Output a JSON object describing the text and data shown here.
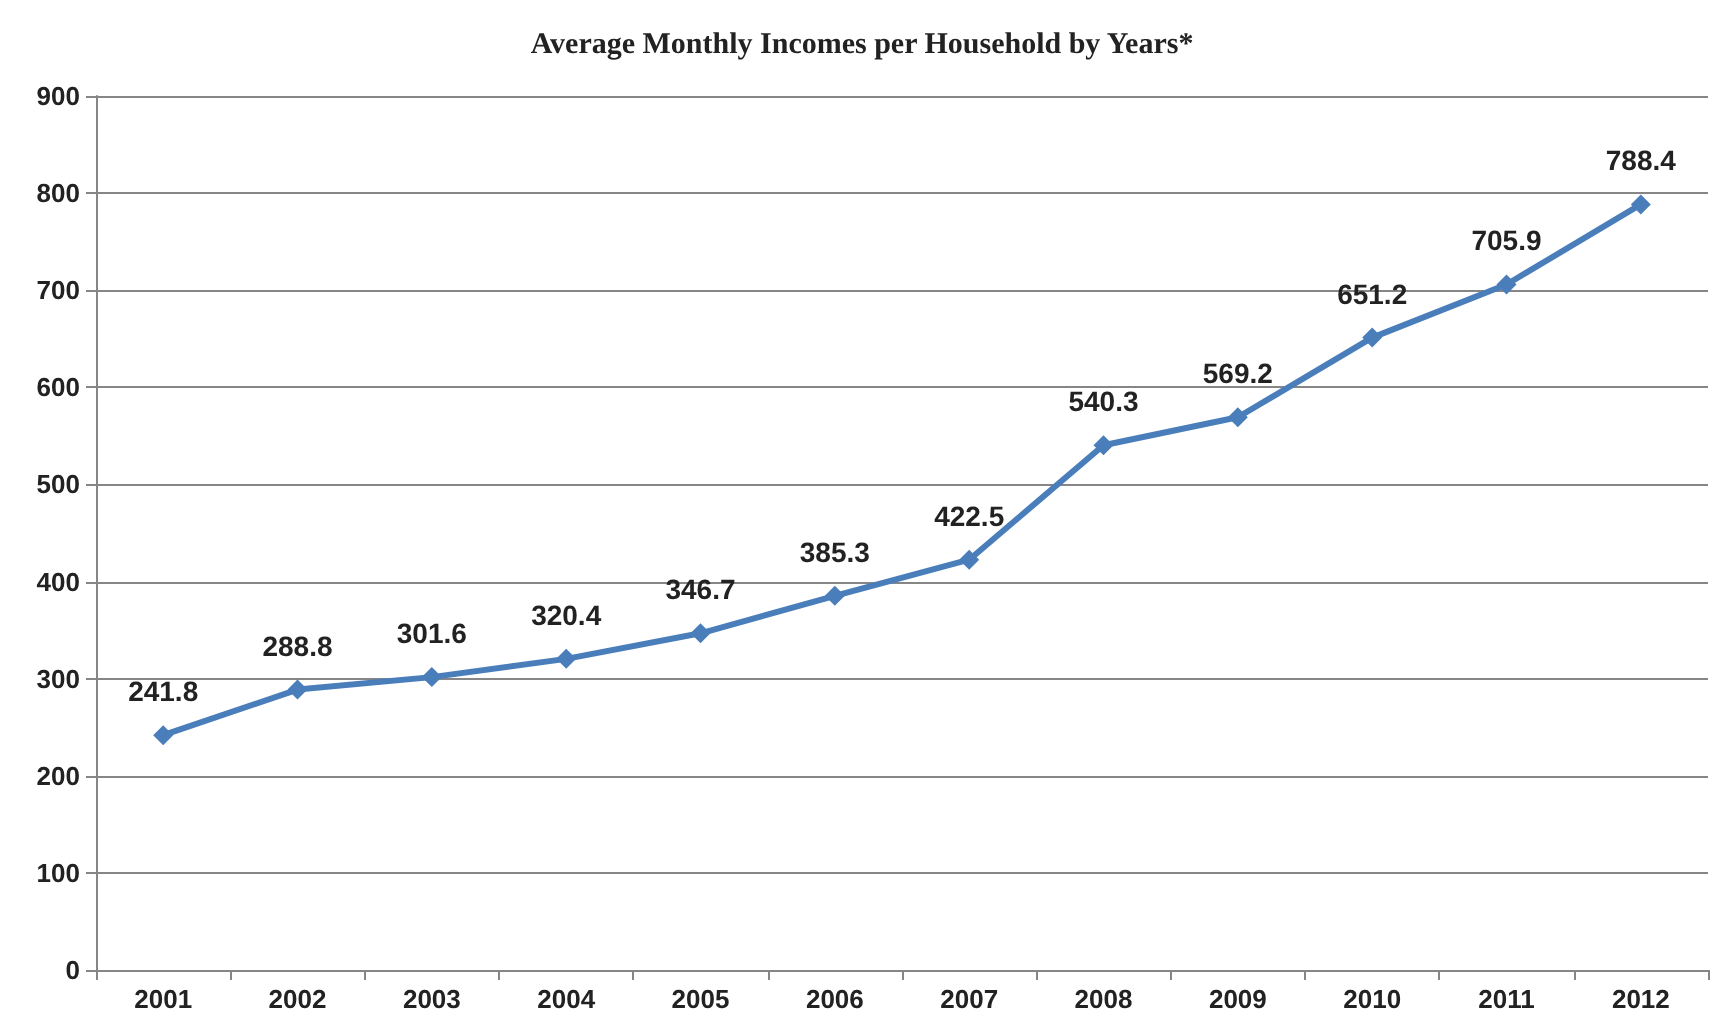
{
  "chart_data": {
    "type": "line",
    "title": "Average Monthly Incomes per Household by Years*",
    "categories": [
      "2001",
      "2002",
      "2003",
      "2004",
      "2005",
      "2006",
      "2007",
      "2008",
      "2009",
      "2010",
      "2011",
      "2012"
    ],
    "series": [
      {
        "color": "#4a7ebb",
        "values": [
          241.8,
          288.8,
          301.6,
          320.4,
          346.7,
          385.3,
          422.5,
          540.3,
          569.2,
          651.2,
          705.9,
          788.4
        ]
      }
    ],
    "ylim": [
      0,
      900
    ],
    "yticks": [
      0,
      100,
      200,
      300,
      400,
      500,
      600,
      700,
      800,
      900
    ],
    "grid": "y",
    "marker": "diamond",
    "line_style": "solid",
    "data_labels": true
  }
}
